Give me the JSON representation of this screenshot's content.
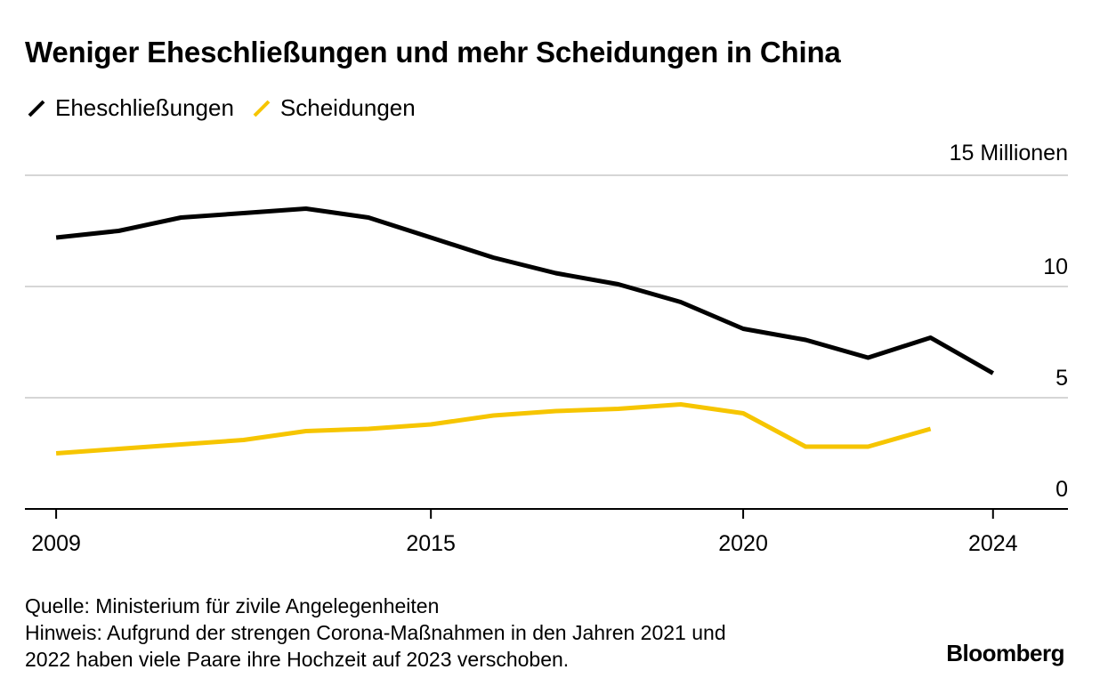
{
  "chart_data": {
    "type": "line",
    "title": "Weniger Eheschließungen und mehr Scheidungen in China",
    "ylabel": "",
    "y_unit_label": "15 Millionen",
    "ylim": [
      0,
      15
    ],
    "y_ticks": [
      0,
      5,
      10
    ],
    "xlim": [
      2008.5,
      2025.2
    ],
    "x_ticks": [
      "2009",
      "2015",
      "2020",
      "2024"
    ],
    "x_tick_values": [
      2009,
      2015,
      2020,
      2024
    ],
    "grid": true,
    "legend_position": "top-left",
    "series": [
      {
        "name": "Eheschließungen",
        "color": "#000000",
        "x": [
          2009,
          2010,
          2011,
          2012,
          2013,
          2014,
          2015,
          2016,
          2017,
          2018,
          2019,
          2020,
          2021,
          2022,
          2023,
          2024
        ],
        "values": [
          12.2,
          12.5,
          13.1,
          13.3,
          13.5,
          13.1,
          12.2,
          11.3,
          10.6,
          10.1,
          9.3,
          8.1,
          7.6,
          6.8,
          7.7,
          6.1
        ]
      },
      {
        "name": "Scheidungen",
        "color": "#f6c500",
        "x": [
          2009,
          2010,
          2011,
          2012,
          2013,
          2014,
          2015,
          2016,
          2017,
          2018,
          2019,
          2020,
          2021,
          2022,
          2023
        ],
        "values": [
          2.5,
          2.7,
          2.9,
          3.1,
          3.5,
          3.6,
          3.8,
          4.2,
          4.4,
          4.5,
          4.7,
          4.3,
          2.8,
          2.8,
          3.6
        ]
      }
    ]
  },
  "footer": {
    "source": "Quelle: Ministerium für zivile Angelegenheiten",
    "note_line1": "Hinweis: Aufgrund der strengen Corona-Maßnahmen in den Jahren 2021 und",
    "note_line2": "2022 haben viele Paare ihre Hochzeit auf 2023 verschoben.",
    "brand": "Bloomberg"
  }
}
